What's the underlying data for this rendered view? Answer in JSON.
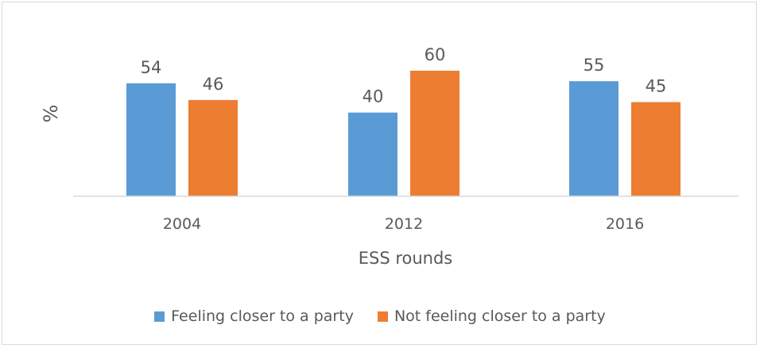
{
  "chart_data": {
    "type": "bar",
    "categories": [
      "2004",
      "2012",
      "2016"
    ],
    "series": [
      {
        "name": "Feeling closer to a party",
        "values": [
          54,
          40,
          55
        ],
        "color": "#5b9bd5"
      },
      {
        "name": "Not feeling closer to a party",
        "values": [
          46,
          60,
          45
        ],
        "color": "#ed7d31"
      }
    ],
    "xlabel": "ESS rounds",
    "ylabel": "%",
    "ylim": [
      0,
      60
    ],
    "grid": false,
    "legend_position": "bottom",
    "axis_color": "#d9d9d9",
    "text_color": "#595959"
  }
}
